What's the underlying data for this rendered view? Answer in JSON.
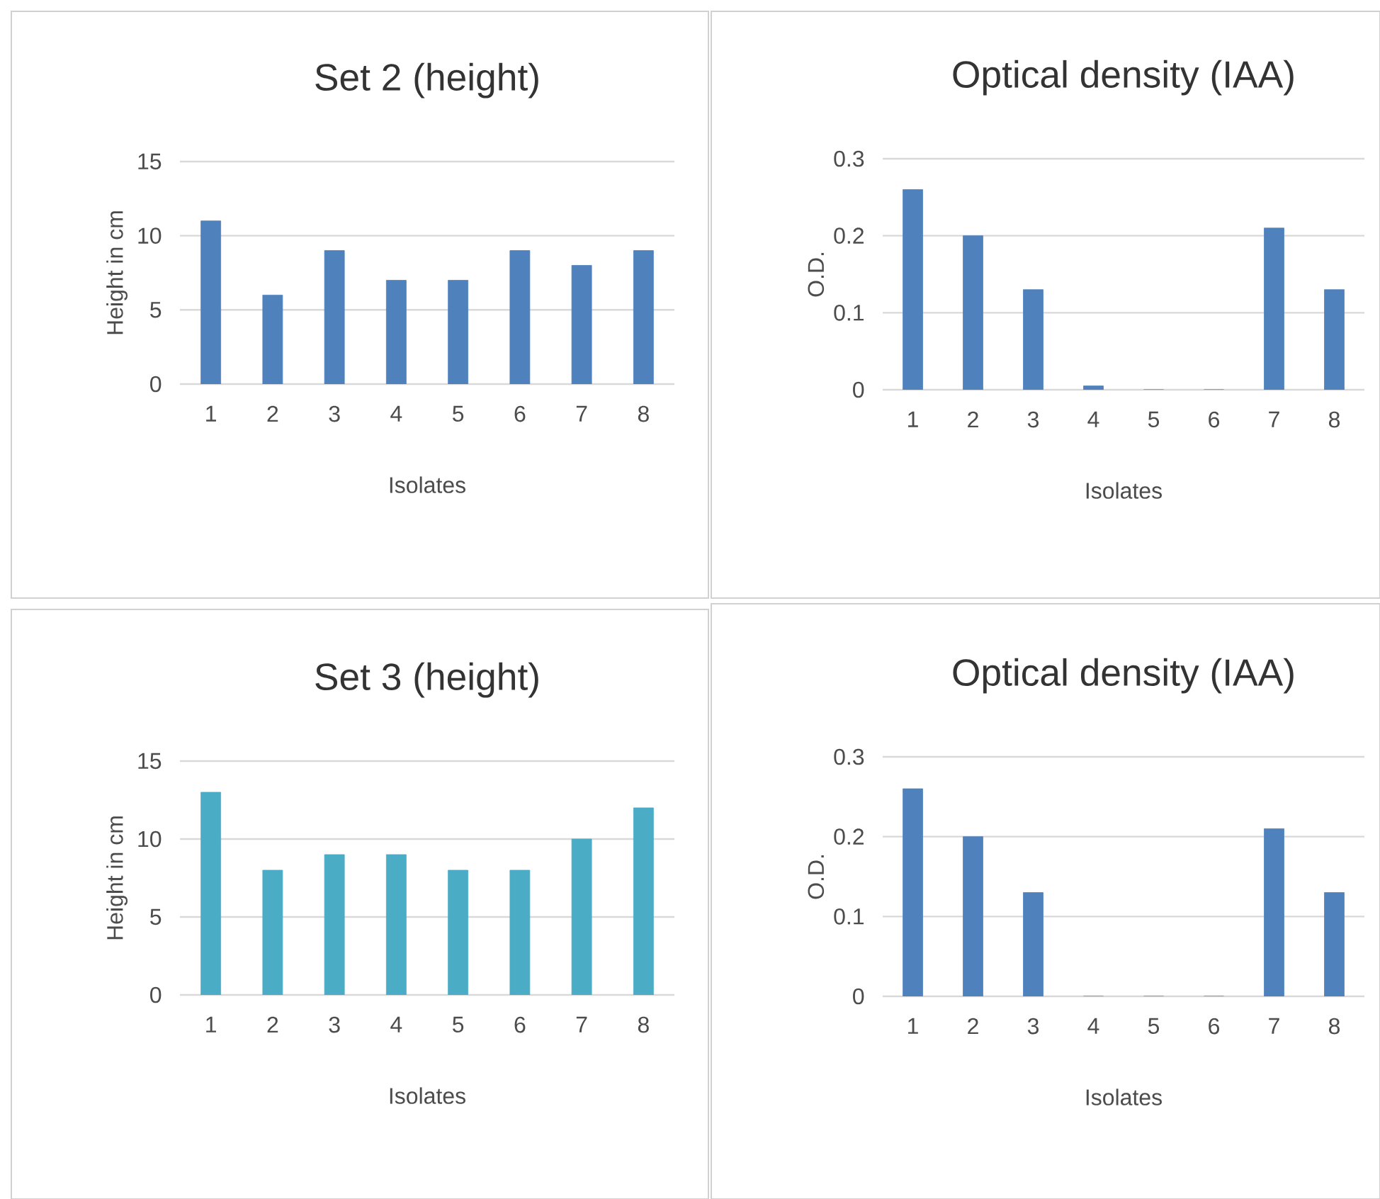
{
  "chart_data": [
    {
      "type": "bar",
      "title": "Set 2 (height)",
      "xlabel": "Isolates",
      "ylabel": "Height in cm",
      "categories": [
        "1",
        "2",
        "3",
        "4",
        "5",
        "6",
        "7",
        "8"
      ],
      "values": [
        11,
        6,
        9,
        7,
        7,
        9,
        8,
        9
      ],
      "color": "#4f81bd",
      "ylim": [
        0,
        15
      ],
      "yticks": [
        0,
        5,
        10,
        15
      ],
      "grid": "y"
    },
    {
      "type": "bar",
      "title": "Optical density (IAA)",
      "xlabel": "Isolates",
      "ylabel": "O.D.",
      "categories": [
        "1",
        "2",
        "3",
        "4",
        "5",
        "6",
        "7",
        "8"
      ],
      "values": [
        0.26,
        0.2,
        0.13,
        0.005,
        0,
        0,
        0.21,
        0.13
      ],
      "color": "#4f81bd",
      "ylim": [
        0,
        0.3
      ],
      "yticks": [
        0,
        0.1,
        0.2,
        0.3
      ],
      "grid": "y"
    },
    {
      "type": "bar",
      "title": "Set 3 (height)",
      "xlabel": "Isolates",
      "ylabel": "Height in cm",
      "categories": [
        "1",
        "2",
        "3",
        "4",
        "5",
        "6",
        "7",
        "8"
      ],
      "values": [
        13,
        8,
        9,
        9,
        8,
        8,
        10,
        12
      ],
      "color": "#4bacc6",
      "ylim": [
        0,
        15
      ],
      "yticks": [
        0,
        5,
        10,
        15
      ],
      "grid": "y"
    },
    {
      "type": "bar",
      "title": "Optical density (IAA)",
      "xlabel": "Isolates",
      "ylabel": "O.D.",
      "categories": [
        "1",
        "2",
        "3",
        "4",
        "5",
        "6",
        "7",
        "8"
      ],
      "values": [
        0.26,
        0.2,
        0.13,
        0,
        0,
        0,
        0.21,
        0.13
      ],
      "color": "#4f81bd",
      "ylim": [
        0,
        0.3
      ],
      "yticks": [
        0,
        0.1,
        0.2,
        0.3
      ],
      "grid": "y"
    }
  ]
}
